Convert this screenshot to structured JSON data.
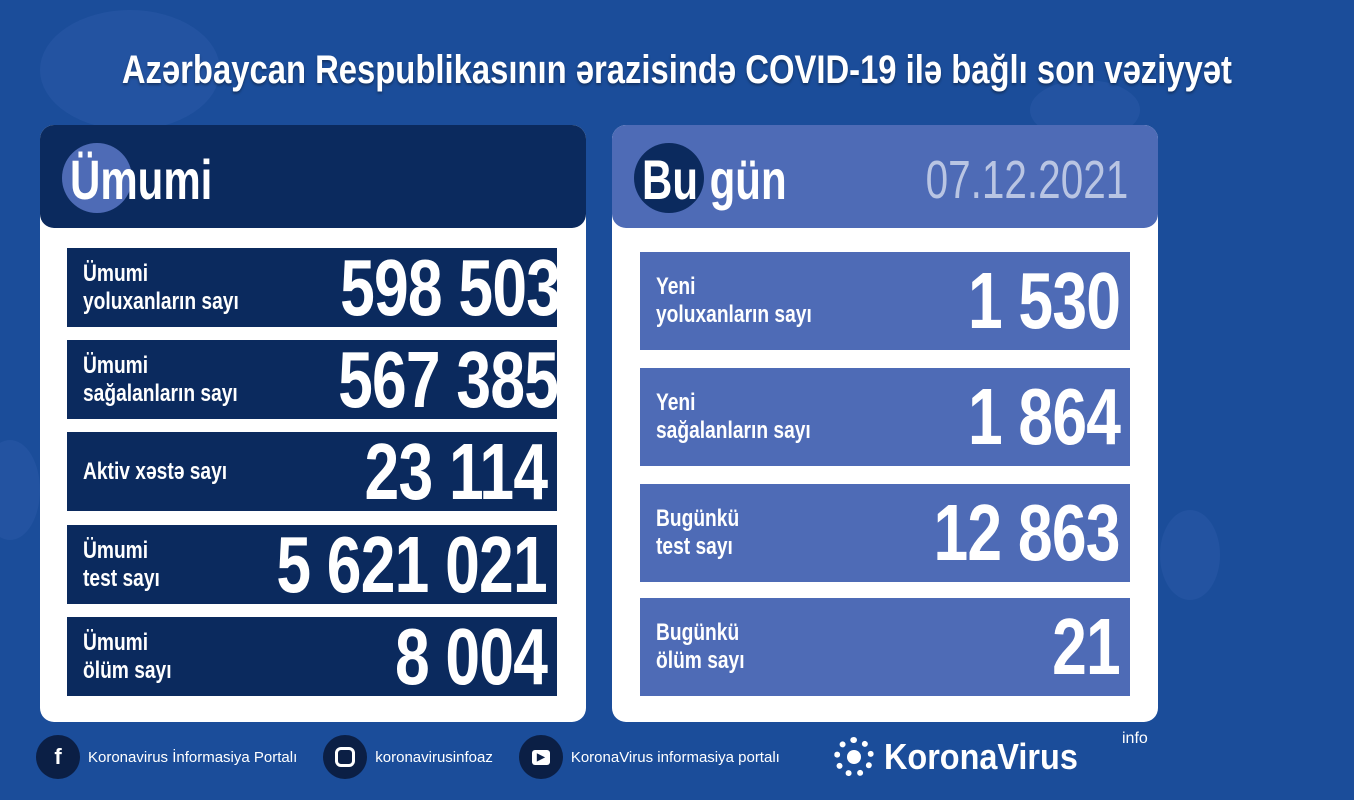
{
  "title": "Azərbaycan Respublikasının ərazisində COVID-19 ilə bağlı son vəziyyət",
  "colors": {
    "background": "#1b4d9a",
    "navy": "#0b2a5e",
    "today_blue": "#4e6bb6",
    "date": "#b9c5e3"
  },
  "total": {
    "heading": "Ümumi",
    "rows": [
      {
        "label_line1": "Ümumi",
        "label_line2": "yoluxanların sayı",
        "value": "598 503"
      },
      {
        "label_line1": "Ümumi",
        "label_line2": "sağalanların sayı",
        "value": "567 385"
      },
      {
        "label_line1": "Aktiv xəstə sayı",
        "label_line2": "",
        "value": "23 114"
      },
      {
        "label_line1": "Ümumi",
        "label_line2": "test sayı",
        "value": "5 621 021"
      },
      {
        "label_line1": "Ümumi",
        "label_line2": "ölüm sayı",
        "value": "8 004"
      }
    ]
  },
  "today": {
    "heading": "Bu gün",
    "date": "07.12.2021",
    "rows": [
      {
        "label_line1": "Yeni",
        "label_line2": "yoluxanların sayı",
        "value": "1 530"
      },
      {
        "label_line1": "Yeni",
        "label_line2": "sağalanların sayı",
        "value": "1 864"
      },
      {
        "label_line1": "Bugünkü",
        "label_line2": "test sayı",
        "value": "12 863"
      },
      {
        "label_line1": "Bugünkü",
        "label_line2": "ölüm sayı",
        "value": "21"
      }
    ]
  },
  "footer": {
    "facebook": {
      "icon": "facebook-icon",
      "label": "Koronavirus İnformasiya Portalı"
    },
    "instagram": {
      "icon": "instagram-icon",
      "label": "koronavirusinfoaz"
    },
    "youtube": {
      "icon": "youtube-icon",
      "label": "KoronaVirus informasiya portalı"
    },
    "brand": {
      "name": "KoronaVirus",
      "sup": "info"
    }
  }
}
